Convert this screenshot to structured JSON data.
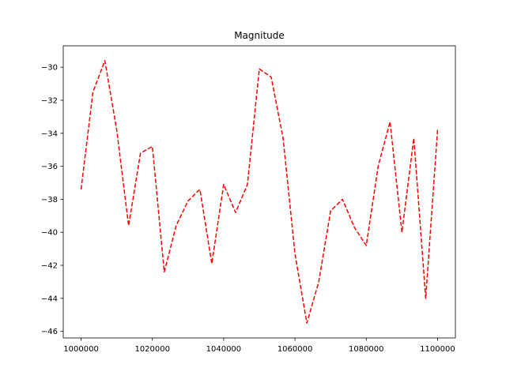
{
  "chart_data": {
    "type": "line",
    "title": "Magnitude",
    "xlabel": "",
    "ylabel": "",
    "xlim": [
      995000,
      1105000
    ],
    "ylim": [
      -46.4,
      -28.7
    ],
    "xticks": [
      1000000,
      1020000,
      1040000,
      1060000,
      1080000,
      1100000
    ],
    "yticks": [
      -46,
      -44,
      -42,
      -40,
      -38,
      -36,
      -34,
      -32,
      -30
    ],
    "grid": false,
    "series": [
      {
        "color": "#ff0000",
        "line_style": "dashed",
        "x": [
          1000000,
          1003333,
          1006667,
          1010000,
          1013333,
          1016667,
          1020000,
          1023333,
          1026667,
          1030000,
          1033333,
          1036667,
          1040000,
          1043333,
          1046667,
          1050000,
          1053333,
          1056667,
          1060000,
          1063333,
          1066667,
          1070000,
          1073333,
          1076667,
          1080000,
          1083333,
          1086667,
          1090000,
          1093333,
          1096667,
          1100000
        ],
        "y": [
          -37.4,
          -31.5,
          -29.6,
          -33.8,
          -39.6,
          -35.2,
          -34.8,
          -42.4,
          -39.6,
          -38.1,
          -37.4,
          -41.9,
          -37.1,
          -38.8,
          -37.1,
          -30.1,
          -30.6,
          -34.3,
          -41.3,
          -45.5,
          -43.0,
          -38.7,
          -38.0,
          -39.7,
          -40.8,
          -36.0,
          -33.3,
          -40.0,
          -34.3,
          -44.0,
          -33.8
        ]
      }
    ]
  }
}
